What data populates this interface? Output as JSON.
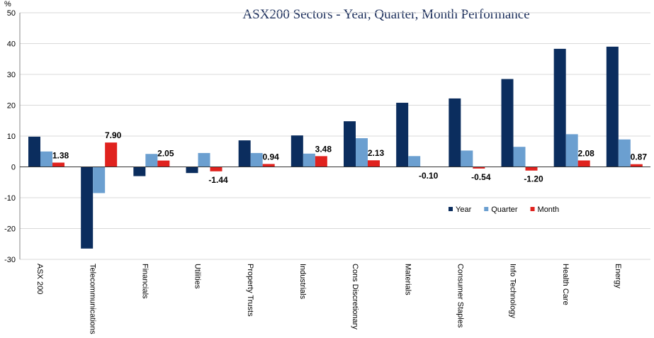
{
  "chart_data": {
    "type": "bar",
    "title": "ASX200 Sectors - Year,  Quarter, Month Performance",
    "y_label": "%",
    "categories": [
      "ASX 200",
      "Telecommunications",
      "Financials",
      "Utilities",
      "Property Trusts",
      "Industrials",
      "Cons Discretionary",
      "Materials",
      "Consumer Staples",
      "Info Technology",
      "Health Care",
      "Energy"
    ],
    "series": [
      {
        "name": "Year",
        "color": "#0b2d5e",
        "values": [
          9.8,
          -26.5,
          -3.0,
          -2.0,
          8.6,
          10.2,
          14.8,
          20.8,
          22.2,
          28.5,
          38.3,
          39.0
        ]
      },
      {
        "name": "Quarter",
        "color": "#6b9fd0",
        "values": [
          5.0,
          -8.5,
          4.2,
          4.5,
          4.5,
          4.3,
          9.3,
          3.5,
          5.3,
          6.5,
          10.6,
          8.9
        ]
      },
      {
        "name": "Month",
        "color": "#e0221e",
        "values": [
          1.38,
          7.9,
          2.05,
          -1.44,
          0.94,
          3.48,
          2.13,
          -0.1,
          -0.54,
          -1.2,
          2.08,
          0.87
        ],
        "value_labels": [
          "1.38",
          "7.90",
          "2.05",
          "-1.44",
          "0.94",
          "3.48",
          "2.13",
          "-0.10",
          "-0.54",
          "-1.20",
          "2.08",
          "0.87"
        ]
      }
    ],
    "ylim": [
      -30,
      50
    ],
    "yticks": [
      -30,
      -20,
      -10,
      0,
      10,
      20,
      30,
      40,
      50
    ],
    "grid": true,
    "legend": "right"
  }
}
